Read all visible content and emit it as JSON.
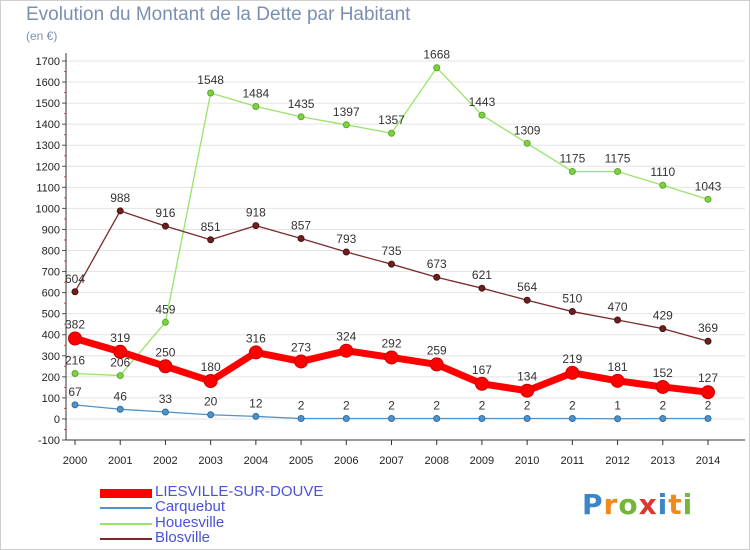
{
  "chart_data": {
    "type": "line",
    "title": "Evolution du Montant de la Dette par Habitant",
    "subtitle": "(en €)",
    "x": [
      "2000",
      "2001",
      "2002",
      "2003",
      "2004",
      "2005",
      "2006",
      "2007",
      "2008",
      "2009",
      "2010",
      "2011",
      "2012",
      "2013",
      "2014"
    ],
    "ylim": [
      -100,
      1700
    ],
    "yticks": [
      "-100",
      "0",
      "100",
      "200",
      "300",
      "400",
      "500",
      "600",
      "700",
      "800",
      "900",
      "1000",
      "1100",
      "1200",
      "1300",
      "1400",
      "1500",
      "1600",
      "1700"
    ],
    "grid": "horizontal",
    "legend_position": "bottom-left",
    "series": [
      {
        "name": "LIESVILLE-SUR-DOUVE",
        "color": "#ff0000",
        "values": [
          382,
          319,
          250,
          180,
          316,
          273,
          324,
          292,
          259,
          167,
          134,
          219,
          181,
          152,
          127
        ]
      },
      {
        "name": "Carquebut",
        "color": "#4f93c9",
        "values": [
          67,
          46,
          33,
          20,
          12,
          2,
          2,
          2,
          2,
          2,
          2,
          2,
          1,
          2,
          2
        ]
      },
      {
        "name": "Houesville",
        "color": "#99e36b",
        "values": [
          216,
          206,
          459,
          1548,
          1484,
          1435,
          1397,
          1357,
          1668,
          1443,
          1309,
          1175,
          1175,
          1110,
          1043
        ]
      },
      {
        "name": "Blosville",
        "color": "#7a2a2a",
        "values": [
          604,
          988,
          916,
          851,
          918,
          857,
          793,
          735,
          673,
          621,
          564,
          510,
          470,
          429,
          369
        ]
      }
    ]
  },
  "logo_text": "Proxiti"
}
